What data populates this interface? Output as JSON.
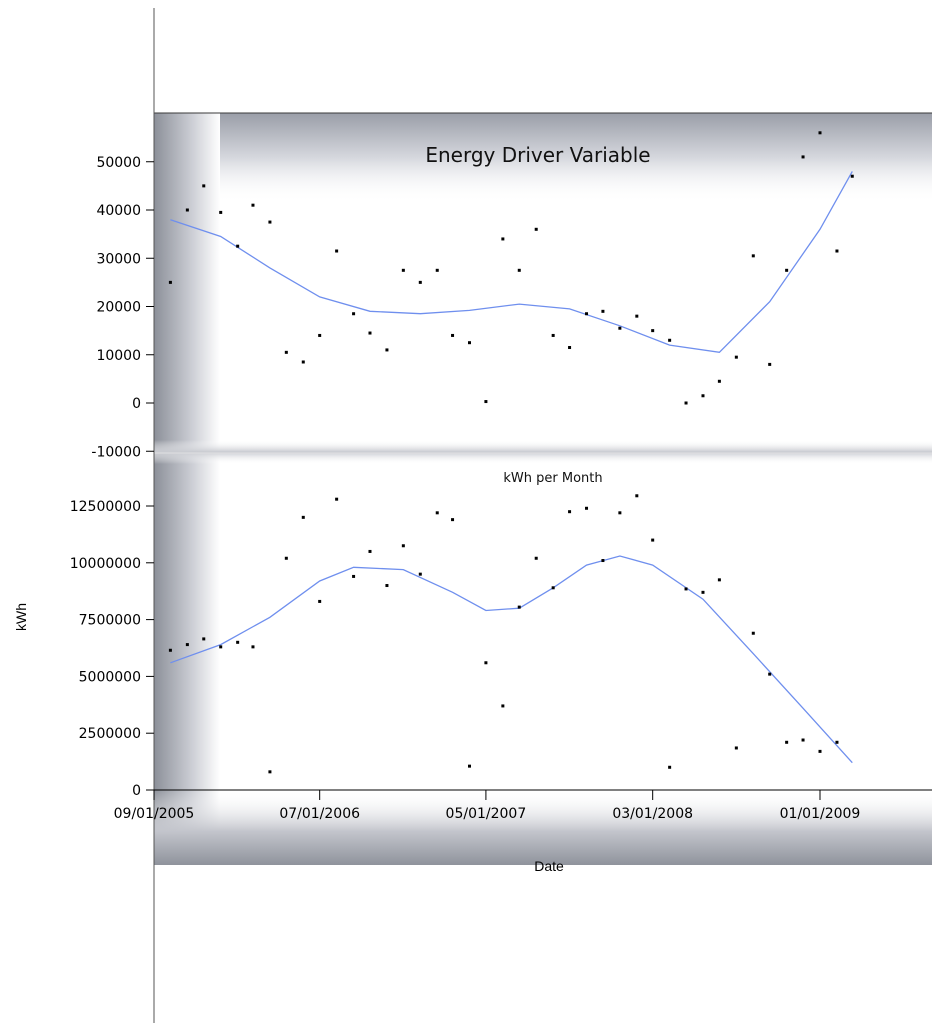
{
  "colors": {
    "fit_line": "#6f8fee",
    "points": "#000000",
    "shadow_dark": "#8a8e98",
    "shadow_light": "#ffffff"
  },
  "chart_data": [
    {
      "type": "scatter",
      "title": "Energy Driver Variable",
      "ylabel": "",
      "ylim": [
        -10000,
        58000
      ],
      "yticks": [
        50000,
        40000,
        30000,
        20000,
        10000,
        0,
        -10000
      ],
      "points": [
        [
          "2005-10-01",
          25000
        ],
        [
          "2005-11-01",
          40000
        ],
        [
          "2005-12-01",
          45000
        ],
        [
          "2006-01-01",
          39500
        ],
        [
          "2006-02-01",
          32500
        ],
        [
          "2006-03-01",
          41000
        ],
        [
          "2006-04-01",
          37500
        ],
        [
          "2006-05-01",
          10500
        ],
        [
          "2006-06-01",
          8500
        ],
        [
          "2006-07-01",
          14000
        ],
        [
          "2006-08-01",
          31500
        ],
        [
          "2006-09-01",
          18500
        ],
        [
          "2006-10-01",
          14500
        ],
        [
          "2006-11-01",
          11000
        ],
        [
          "2006-12-01",
          27500
        ],
        [
          "2007-01-01",
          25000
        ],
        [
          "2007-02-01",
          27500
        ],
        [
          "2007-03-01",
          14000
        ],
        [
          "2007-04-01",
          12500
        ],
        [
          "2007-05-01",
          300
        ],
        [
          "2007-06-01",
          34000
        ],
        [
          "2007-07-01",
          27500
        ],
        [
          "2007-08-01",
          36000
        ],
        [
          "2007-09-01",
          14000
        ],
        [
          "2007-10-01",
          11500
        ],
        [
          "2007-11-01",
          18500
        ],
        [
          "2007-12-01",
          19000
        ],
        [
          "2008-01-01",
          15500
        ],
        [
          "2008-02-01",
          18000
        ],
        [
          "2008-03-01",
          15000
        ],
        [
          "2008-04-01",
          13000
        ],
        [
          "2008-05-01",
          0
        ],
        [
          "2008-06-01",
          1500
        ],
        [
          "2008-07-01",
          4500
        ],
        [
          "2008-08-01",
          9500
        ],
        [
          "2008-09-01",
          30500
        ],
        [
          "2008-10-01",
          8000
        ],
        [
          "2008-11-01",
          27500
        ],
        [
          "2008-12-01",
          51000
        ],
        [
          "2009-01-01",
          56000
        ],
        [
          "2009-02-01",
          31500
        ],
        [
          "2009-03-01",
          47000
        ]
      ],
      "trend": [
        [
          "2005-10-01",
          38000
        ],
        [
          "2006-01-01",
          34500
        ],
        [
          "2006-04-01",
          28000
        ],
        [
          "2006-07-01",
          22000
        ],
        [
          "2006-10-01",
          19000
        ],
        [
          "2007-01-01",
          18500
        ],
        [
          "2007-04-01",
          19200
        ],
        [
          "2007-07-01",
          20500
        ],
        [
          "2007-10-01",
          19500
        ],
        [
          "2008-01-01",
          16000
        ],
        [
          "2008-04-01",
          12000
        ],
        [
          "2008-07-01",
          10500
        ],
        [
          "2008-10-01",
          21000
        ],
        [
          "2009-01-01",
          36000
        ],
        [
          "2009-03-01",
          48000
        ]
      ]
    },
    {
      "type": "scatter",
      "title": "kWh per Month",
      "ylabel": "kWh",
      "xlabel": "Date",
      "ylim": [
        0,
        13500000
      ],
      "yticks": [
        12500000,
        10000000,
        7500000,
        5000000,
        2500000,
        0
      ],
      "xticks": [
        "09/01/2005",
        "07/01/2006",
        "05/01/2007",
        "03/01/2008",
        "01/01/2009"
      ],
      "points": [
        [
          "2005-10-01",
          6150000
        ],
        [
          "2005-11-01",
          6400000
        ],
        [
          "2005-12-01",
          6650000
        ],
        [
          "2006-01-01",
          6300000
        ],
        [
          "2006-02-01",
          6500000
        ],
        [
          "2006-03-01",
          6300000
        ],
        [
          "2006-04-01",
          800000
        ],
        [
          "2006-05-01",
          10200000
        ],
        [
          "2006-06-01",
          12000000
        ],
        [
          "2006-07-01",
          8300000
        ],
        [
          "2006-08-01",
          12800000
        ],
        [
          "2006-09-01",
          9400000
        ],
        [
          "2006-10-01",
          10500000
        ],
        [
          "2006-11-01",
          9000000
        ],
        [
          "2006-12-01",
          10750000
        ],
        [
          "2007-01-01",
          9500000
        ],
        [
          "2007-02-01",
          12200000
        ],
        [
          "2007-03-01",
          11900000
        ],
        [
          "2007-04-01",
          1050000
        ],
        [
          "2007-05-01",
          5600000
        ],
        [
          "2007-06-01",
          3700000
        ],
        [
          "2007-07-01",
          8050000
        ],
        [
          "2007-08-01",
          10200000
        ],
        [
          "2007-09-01",
          8900000
        ],
        [
          "2007-10-01",
          12250000
        ],
        [
          "2007-11-01",
          12400000
        ],
        [
          "2007-12-01",
          10100000
        ],
        [
          "2008-01-01",
          12200000
        ],
        [
          "2008-02-01",
          12950000
        ],
        [
          "2008-03-01",
          11000000
        ],
        [
          "2008-04-01",
          1000000
        ],
        [
          "2008-05-01",
          8850000
        ],
        [
          "2008-06-01",
          8700000
        ],
        [
          "2008-07-01",
          9250000
        ],
        [
          "2008-08-01",
          1850000
        ],
        [
          "2008-09-01",
          6900000
        ],
        [
          "2008-10-01",
          5100000
        ],
        [
          "2008-11-01",
          2100000
        ],
        [
          "2008-12-01",
          2200000
        ],
        [
          "2009-01-01",
          1700000
        ],
        [
          "2009-02-01",
          2100000
        ]
      ],
      "trend": [
        [
          "2005-10-01",
          5600000
        ],
        [
          "2006-01-01",
          6400000
        ],
        [
          "2006-04-01",
          7600000
        ],
        [
          "2006-07-01",
          9200000
        ],
        [
          "2006-09-01",
          9800000
        ],
        [
          "2006-12-01",
          9700000
        ],
        [
          "2007-03-01",
          8700000
        ],
        [
          "2007-05-01",
          7900000
        ],
        [
          "2007-07-01",
          8000000
        ],
        [
          "2007-09-01",
          8900000
        ],
        [
          "2007-11-01",
          9900000
        ],
        [
          "2008-01-01",
          10300000
        ],
        [
          "2008-03-01",
          9900000
        ],
        [
          "2008-06-01",
          8400000
        ],
        [
          "2008-09-01",
          6000000
        ],
        [
          "2008-12-01",
          3600000
        ],
        [
          "2009-03-01",
          1200000
        ]
      ]
    }
  ]
}
